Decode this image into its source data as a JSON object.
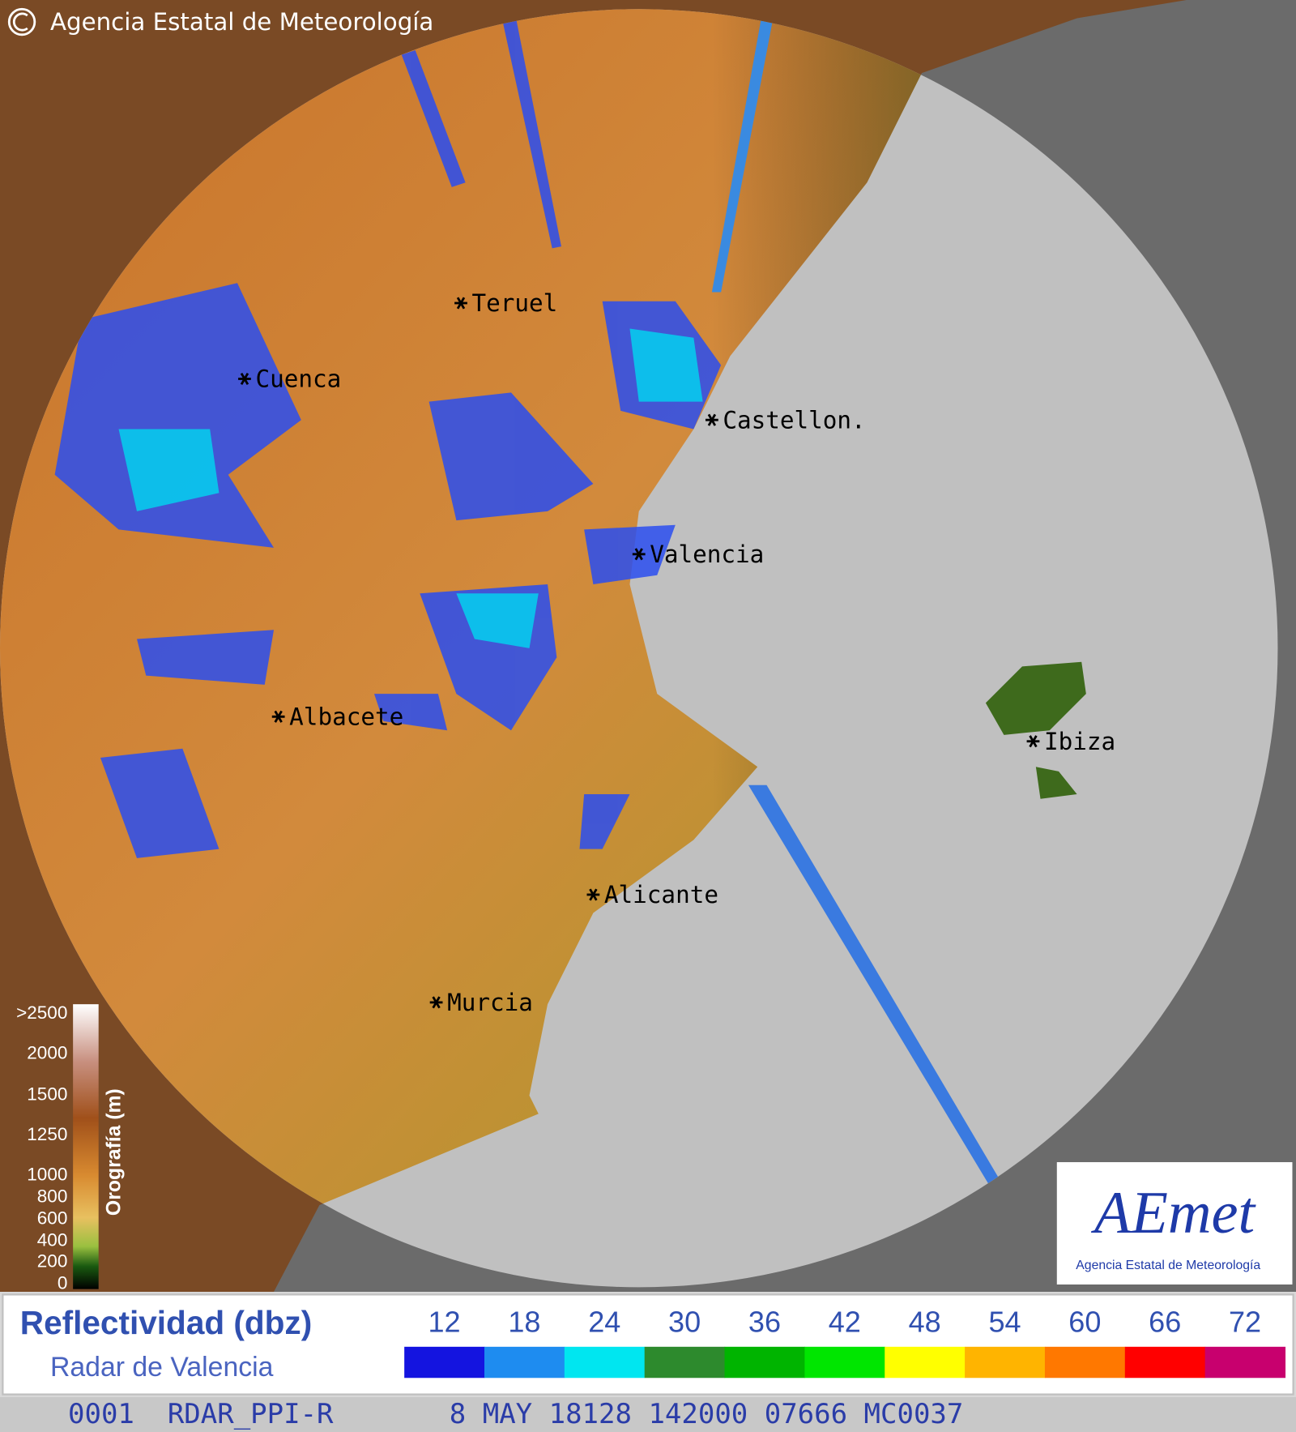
{
  "header": {
    "copyright": "Agencia Estatal de Meteorología"
  },
  "map": {
    "cities": [
      {
        "label": "Teruel"
      },
      {
        "label": "Cuenca"
      },
      {
        "label": "Castellon."
      },
      {
        "label": "Valencia"
      },
      {
        "label": "Albacete"
      },
      {
        "label": "Ibiza"
      },
      {
        "label": "Alicante"
      },
      {
        "label": "Murcia"
      }
    ]
  },
  "orography": {
    "title": "Orografía (m)",
    "ticks": [
      ">2500",
      "2000",
      "1500",
      "1250",
      "1000",
      "800",
      "600",
      "400",
      "200",
      "0"
    ]
  },
  "logo": {
    "text": "AEmet",
    "subtitle": "Agencia Estatal de Meteorología"
  },
  "reflectivity": {
    "title": "Reflectividad (dbz)",
    "subtitle": "Radar de Valencia",
    "levels": [
      {
        "value": 12,
        "color": "#1414e0"
      },
      {
        "value": 18,
        "color": "#1e8cf0"
      },
      {
        "value": 24,
        "color": "#00e6f0"
      },
      {
        "value": 30,
        "color": "#2d8a2d"
      },
      {
        "value": 36,
        "color": "#00b400"
      },
      {
        "value": 42,
        "color": "#00e600"
      },
      {
        "value": 48,
        "color": "#ffff00"
      },
      {
        "value": 54,
        "color": "#ffb400"
      },
      {
        "value": 60,
        "color": "#ff7800"
      },
      {
        "value": 66,
        "color": "#ff0000"
      },
      {
        "value": 72,
        "color": "#c8006e"
      }
    ]
  },
  "status": {
    "text": "0001  RDAR_PPI-R       8 MAY 18128 142000 07666 MC0037"
  }
}
